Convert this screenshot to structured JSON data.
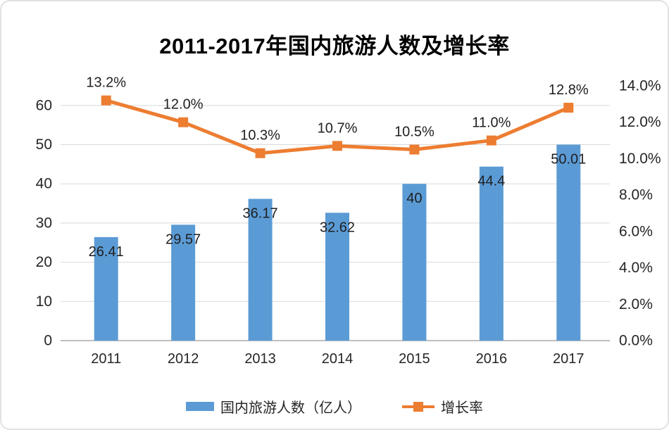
{
  "chart_data": {
    "type": "combo",
    "title": "2011-2017年国内旅游人数及增长率",
    "categories": [
      "2011",
      "2012",
      "2013",
      "2014",
      "2015",
      "2016",
      "2017"
    ],
    "series": [
      {
        "name": "国内旅游人数（亿人）",
        "type": "bar",
        "axis": "left",
        "color": "#5B9BD5",
        "values": [
          26.41,
          29.57,
          36.17,
          32.62,
          40,
          44.4,
          50.01
        ],
        "labels": [
          "26.41",
          "29.57",
          "36.17",
          "32.62",
          "40",
          "44.4",
          "50.01"
        ]
      },
      {
        "name": "增长率",
        "type": "line",
        "axis": "right",
        "color": "#ED7D31",
        "values": [
          13.2,
          12.0,
          10.3,
          10.7,
          10.5,
          11.0,
          12.8
        ],
        "labels": [
          "13.2%",
          "12.0%",
          "10.3%",
          "10.7%",
          "10.5%",
          "11.0%",
          "12.8%"
        ]
      }
    ],
    "left_axis": {
      "min": 0,
      "max": 65,
      "tick_values": [
        0,
        10,
        20,
        30,
        40,
        50,
        60
      ],
      "tick_labels": [
        "0",
        "10",
        "20",
        "30",
        "40",
        "50",
        "60"
      ]
    },
    "right_axis": {
      "min": 0,
      "max": 14,
      "tick_values": [
        0,
        2,
        4,
        6,
        8,
        10,
        12,
        14
      ],
      "tick_labels": [
        "0.0%",
        "2.0%",
        "4.0%",
        "6.0%",
        "8.0%",
        "10.0%",
        "12.0%",
        "14.0%"
      ]
    },
    "grid": true,
    "legend_position": "bottom"
  },
  "style": {
    "grid_color": "#D9D9D9",
    "axis_line_color": "#BFBFBF",
    "label_color": "#1F1F1F",
    "tick_color": "#262626"
  }
}
